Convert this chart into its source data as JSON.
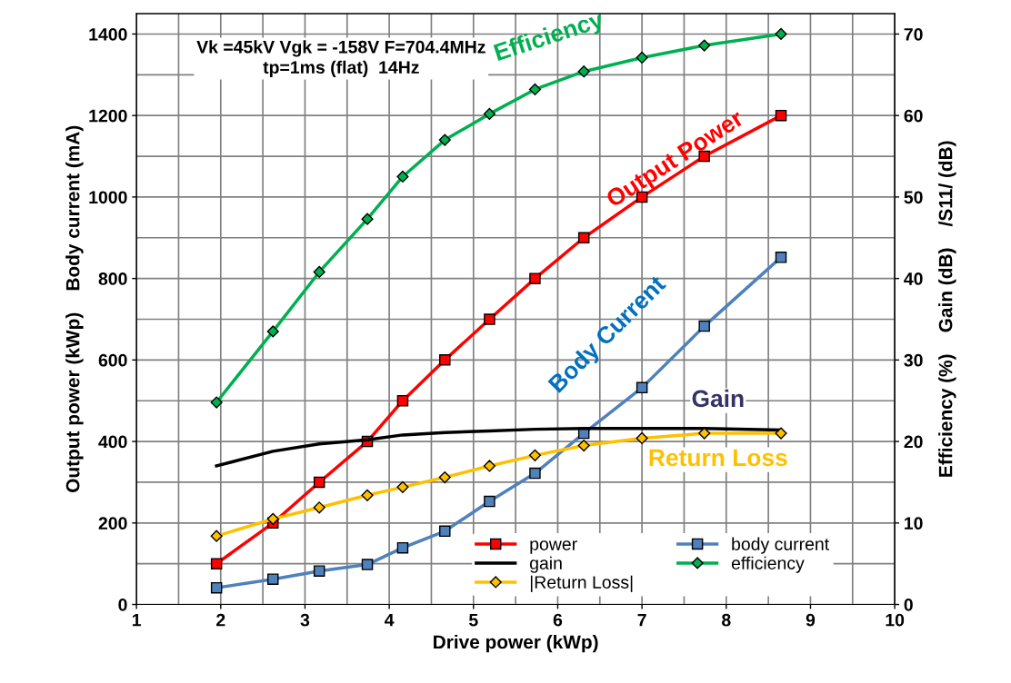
{
  "chart_data": {
    "type": "line",
    "xlabel": "Drive power (kWp)",
    "ylabel": "Output power (kWp)    Body current (mA)",
    "y2label": "Efficiency (%)    Gain (dB)    /S11/ (dB)",
    "x": [
      1.95,
      2.62,
      3.17,
      3.74,
      4.16,
      4.66,
      5.19,
      5.73,
      6.31,
      7.0,
      7.74,
      8.65
    ],
    "series": [
      {
        "name": "power",
        "color": "#ff0000",
        "marker": "square",
        "values": [
          100,
          200,
          300,
          400,
          500,
          600,
          700,
          800,
          900,
          1000,
          1100,
          1200
        ]
      },
      {
        "name": "gain",
        "color": "#000000",
        "marker": "none",
        "axis": "y2",
        "values": [
          17.0,
          18.8,
          19.7,
          20.2,
          20.8,
          21.1,
          21.3,
          21.5,
          21.6,
          21.6,
          21.6,
          21.4
        ]
      },
      {
        "name": "|Return Loss|",
        "color": "#ffc000",
        "marker": "diamond",
        "axis": "y2",
        "values": [
          8.4,
          10.5,
          11.9,
          13.4,
          14.4,
          15.6,
          17.0,
          18.3,
          19.5,
          20.4,
          21.0,
          21.0
        ]
      },
      {
        "name": "body current",
        "color": "#4f81bd",
        "marker": "square",
        "values": [
          41,
          62,
          82,
          98,
          139,
          180,
          253,
          322,
          420,
          532,
          683,
          852
        ]
      },
      {
        "name": "efficiency",
        "color": "#00b050",
        "marker": "diamond",
        "axis": "y2",
        "values": [
          24.8,
          33.5,
          40.8,
          47.3,
          52.5,
          57.0,
          60.2,
          63.2,
          65.4,
          67.1,
          68.6,
          70.0
        ]
      }
    ],
    "xlim": [
      1,
      10
    ],
    "xticks": [
      1,
      2,
      3,
      4,
      5,
      6,
      7,
      8,
      9,
      10
    ],
    "ylim": [
      0,
      1450
    ],
    "yticks": [
      0,
      200,
      400,
      600,
      800,
      1000,
      1200,
      1400
    ],
    "y2lim": [
      0,
      72.5
    ],
    "y2ticks": [
      0,
      10,
      20,
      30,
      40,
      50,
      60,
      70
    ],
    "grid": true,
    "legend": "bottom right",
    "annotations": [
      "Vk =45kV Vgk = -158V F=704.4MHz\ntp=1ms (flat)  14Hz",
      "Efficiency",
      "Output Power",
      "Body Current",
      "Gain",
      "Return Loss"
    ]
  }
}
